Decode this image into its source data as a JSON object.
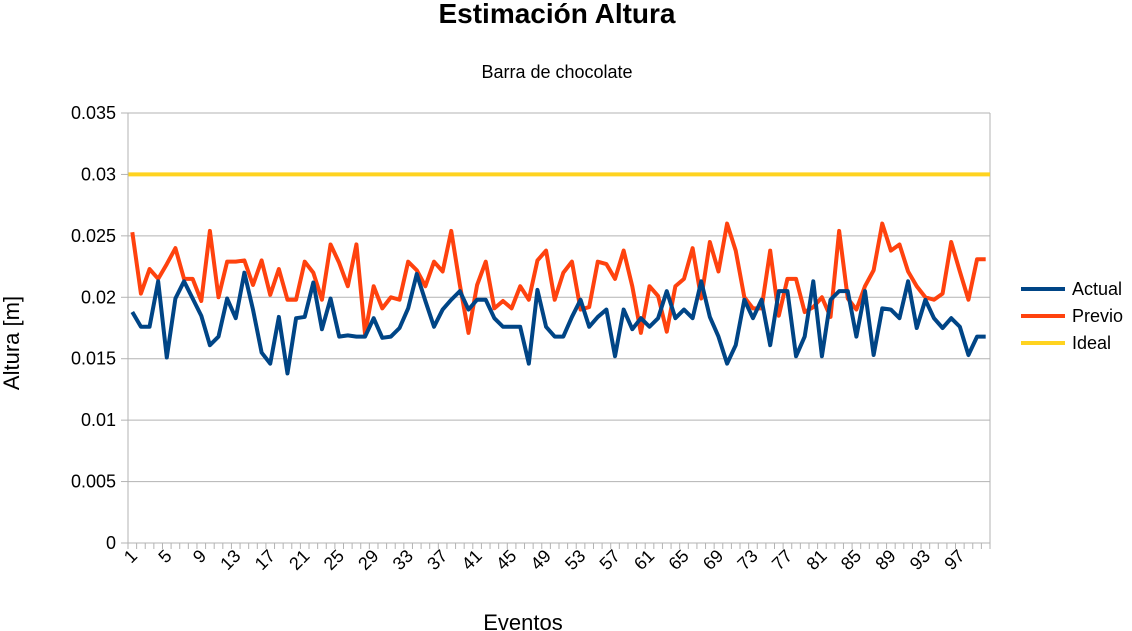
{
  "chart_data": {
    "type": "line",
    "title": "Estimación Altura",
    "subtitle": "Barra de chocolate",
    "xlabel": "Eventos",
    "ylabel": "Altura [m]",
    "ylim": [
      0,
      0.035
    ],
    "y_ticks": [
      "0",
      "0.005",
      "0.01",
      "0.015",
      "0.02",
      "0.025",
      "0.03",
      "0.035"
    ],
    "y_tick_values": [
      0,
      0.005,
      0.01,
      0.015,
      0.02,
      0.025,
      0.03,
      0.035
    ],
    "x": [
      1,
      2,
      3,
      4,
      5,
      6,
      7,
      8,
      9,
      10,
      11,
      12,
      13,
      14,
      15,
      16,
      17,
      18,
      19,
      20,
      21,
      22,
      23,
      24,
      25,
      26,
      27,
      28,
      29,
      30,
      31,
      32,
      33,
      34,
      35,
      36,
      37,
      38,
      39,
      40,
      41,
      42,
      43,
      44,
      45,
      46,
      47,
      48,
      49,
      50,
      51,
      52,
      53,
      54,
      55,
      56,
      57,
      58,
      59,
      60,
      61,
      62,
      63,
      64,
      65,
      66,
      67,
      68,
      69,
      70,
      71,
      72,
      73,
      74,
      75,
      76,
      77,
      78,
      79,
      80,
      81,
      82,
      83,
      84,
      85,
      86,
      87,
      88,
      89,
      90,
      91,
      92,
      93,
      94,
      95,
      96,
      97,
      98,
      99,
      100
    ],
    "x_tick_labels": [
      "1",
      "5",
      "9",
      "13",
      "17",
      "21",
      "25",
      "29",
      "33",
      "37",
      "41",
      "45",
      "49",
      "53",
      "57",
      "61",
      "65",
      "69",
      "73",
      "77",
      "81",
      "85",
      "89",
      "93",
      "97"
    ],
    "grid": true,
    "legend_position": "right",
    "series": [
      {
        "name": "Actual",
        "color": "#004586",
        "values": [
          0.0188,
          0.0176,
          0.0176,
          0.0213,
          0.0151,
          0.0199,
          0.0213,
          0.0199,
          0.0185,
          0.0161,
          0.0168,
          0.0199,
          0.0183,
          0.022,
          0.019,
          0.0155,
          0.0146,
          0.0184,
          0.0138,
          0.0183,
          0.0184,
          0.0212,
          0.0174,
          0.0199,
          0.0168,
          0.0169,
          0.0168,
          0.0168,
          0.0183,
          0.0167,
          0.0168,
          0.0175,
          0.0191,
          0.0219,
          0.0197,
          0.0176,
          0.019,
          0.0198,
          0.0205,
          0.019,
          0.0198,
          0.0198,
          0.0183,
          0.0176,
          0.0176,
          0.0176,
          0.0146,
          0.0206,
          0.0176,
          0.0168,
          0.0168,
          0.0184,
          0.0198,
          0.0176,
          0.0184,
          0.019,
          0.0152,
          0.019,
          0.0174,
          0.0183,
          0.0176,
          0.0183,
          0.0205,
          0.0183,
          0.019,
          0.0183,
          0.0213,
          0.0184,
          0.0168,
          0.0146,
          0.0161,
          0.0198,
          0.0183,
          0.0198,
          0.0161,
          0.0205,
          0.0205,
          0.0152,
          0.0168,
          0.0213,
          0.0152,
          0.0198,
          0.0205,
          0.0205,
          0.0168,
          0.0205,
          0.0153,
          0.0191,
          0.019,
          0.0183,
          0.0213,
          0.0175,
          0.0198,
          0.0183,
          0.0175,
          0.0183,
          0.0176,
          0.0153,
          0.0168,
          0.0168
        ]
      },
      {
        "name": "Previo",
        "color": "#ff420e",
        "values": [
          0.0253,
          0.0203,
          0.0223,
          0.0215,
          0.0227,
          0.024,
          0.0215,
          0.0215,
          0.0197,
          0.0254,
          0.02,
          0.0229,
          0.0229,
          0.023,
          0.021,
          0.023,
          0.0202,
          0.0223,
          0.0198,
          0.0198,
          0.0229,
          0.022,
          0.0198,
          0.0243,
          0.0228,
          0.0209,
          0.0243,
          0.017,
          0.0209,
          0.0191,
          0.02,
          0.0198,
          0.0229,
          0.0222,
          0.0209,
          0.0229,
          0.0221,
          0.0254,
          0.021,
          0.0171,
          0.021,
          0.0229,
          0.0191,
          0.0197,
          0.0191,
          0.0209,
          0.0198,
          0.023,
          0.0238,
          0.0198,
          0.022,
          0.0229,
          0.019,
          0.0192,
          0.0229,
          0.0227,
          0.0215,
          0.0238,
          0.0209,
          0.0171,
          0.0209,
          0.0201,
          0.0172,
          0.0209,
          0.0215,
          0.024,
          0.0199,
          0.0245,
          0.0221,
          0.026,
          0.0238,
          0.02,
          0.0191,
          0.0191,
          0.0238,
          0.0185,
          0.0215,
          0.0215,
          0.0188,
          0.0192,
          0.02,
          0.0184,
          0.0254,
          0.0199,
          0.019,
          0.0209,
          0.0222,
          0.026,
          0.0238,
          0.0243,
          0.0221,
          0.0209,
          0.02,
          0.0198,
          0.0203,
          0.0245,
          0.0221,
          0.0198,
          0.0231,
          0.0231
        ]
      },
      {
        "name": "Ideal",
        "color": "#ffd320",
        "constant": 0.03
      }
    ]
  }
}
